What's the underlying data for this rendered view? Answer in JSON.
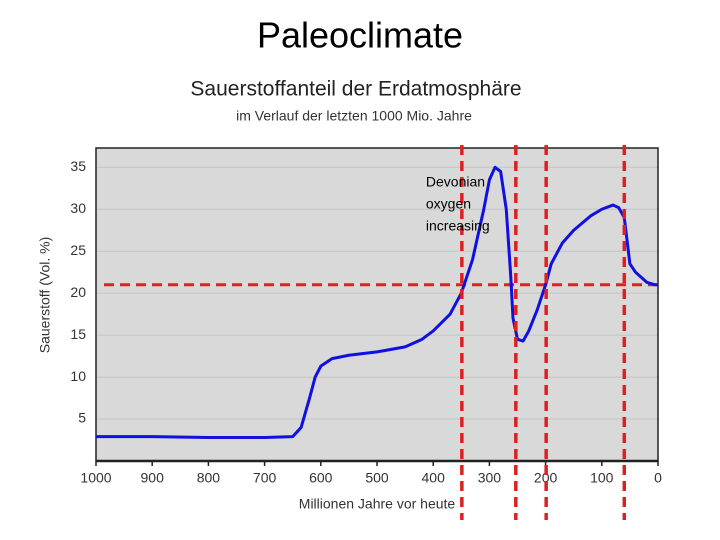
{
  "slide_title": "Paleoclimate",
  "chart_data": {
    "type": "line",
    "title": "Sauerstoffanteil der Erdatmosphäre",
    "subtitle": "im Verlauf der letzten 1000 Mio. Jahre",
    "x_label": "Millionen Jahre vor heute",
    "y_label": "Sauerstoff (Vol. %)",
    "x": [
      1000,
      900,
      800,
      700,
      650,
      635,
      620,
      610,
      600,
      580,
      550,
      500,
      450,
      420,
      400,
      370,
      350,
      330,
      310,
      300,
      290,
      280,
      270,
      262,
      258,
      250,
      240,
      230,
      215,
      200,
      190,
      170,
      150,
      120,
      100,
      80,
      70,
      60,
      50,
      40,
      20,
      5,
      0
    ],
    "values": [
      2.9,
      2.9,
      2.8,
      2.8,
      2.9,
      4,
      7.5,
      10,
      11.3,
      12.2,
      12.6,
      13,
      13.6,
      14.5,
      15.5,
      17.5,
      20,
      24,
      30,
      33.5,
      35,
      34.5,
      30,
      22,
      17,
      14.5,
      14.3,
      15.5,
      18,
      21,
      23.5,
      26,
      27.5,
      29.2,
      30,
      30.5,
      30.2,
      29,
      23.5,
      22.5,
      21.3,
      21,
      21
    ],
    "color": "#1010e0",
    "xlim": [
      1000,
      0
    ],
    "xticks": [
      1000,
      900,
      800,
      700,
      600,
      500,
      400,
      300,
      200,
      100,
      0
    ],
    "ylim": [
      0,
      37.3
    ],
    "yticks": [
      5,
      10,
      15,
      20,
      25,
      30,
      35
    ],
    "grid": true,
    "hlines": [
      21
    ],
    "vlines": [
      349,
      253,
      199,
      60
    ],
    "ref_color": "#e02020",
    "annotation": {
      "x": 413,
      "lines": [
        "Devonian",
        "oxygen",
        "increasing"
      ]
    }
  }
}
